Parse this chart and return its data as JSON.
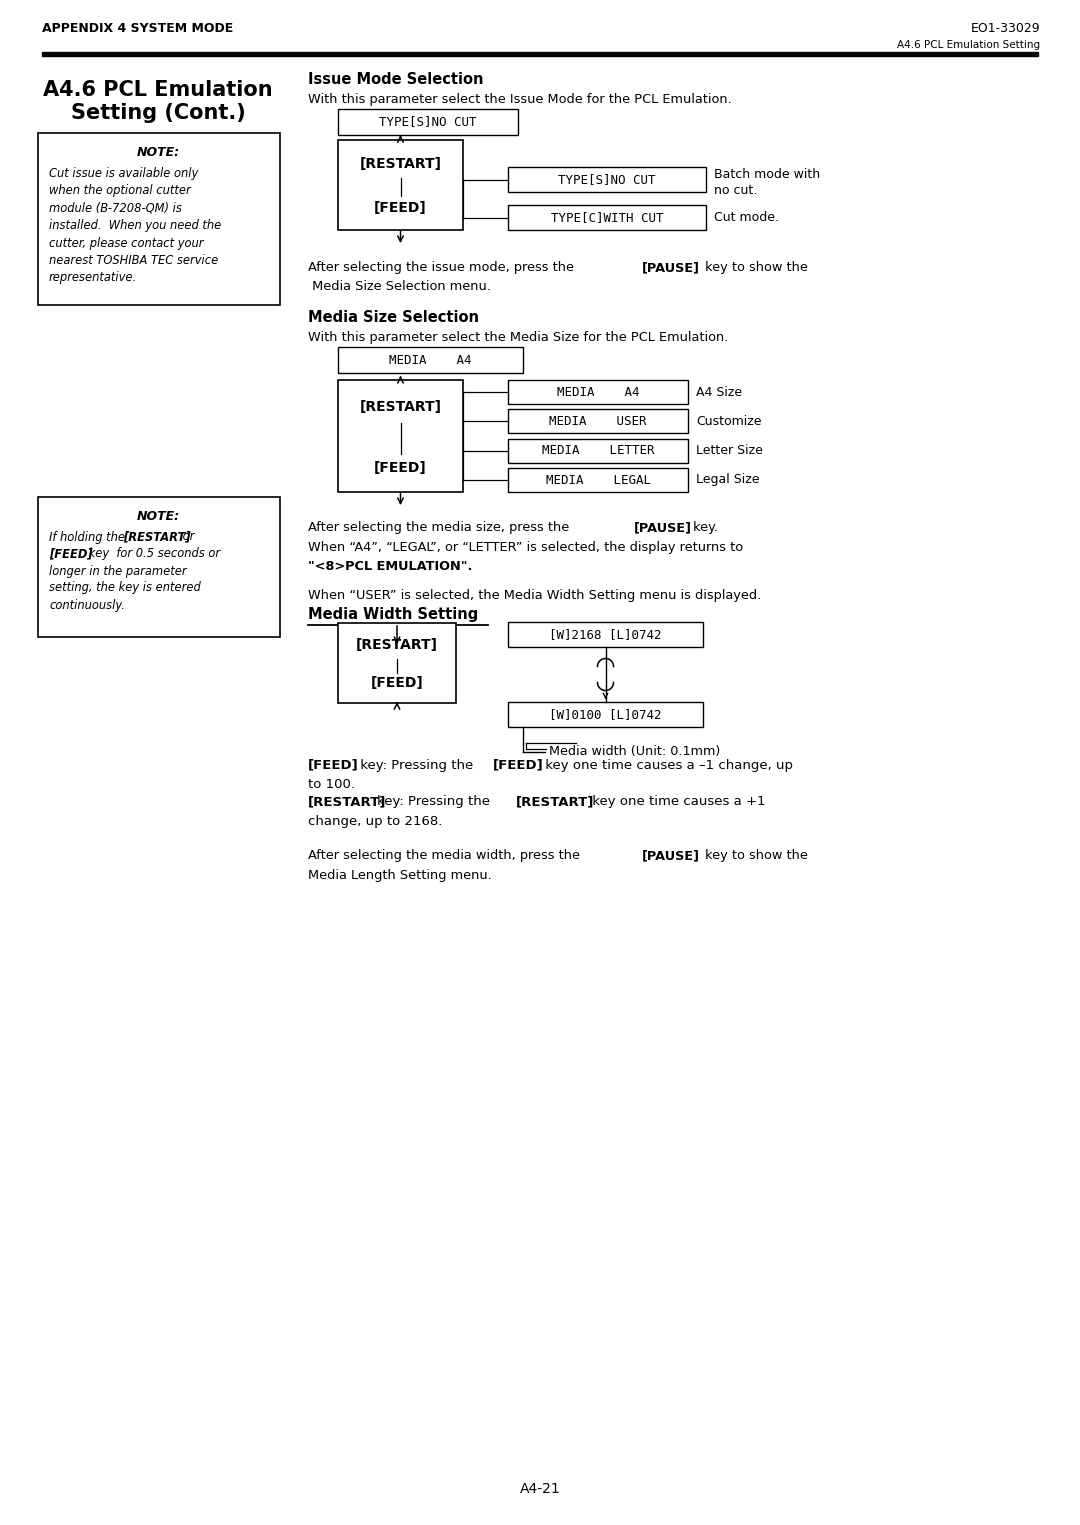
{
  "page_title_left": "APPENDIX 4 SYSTEM MODE",
  "page_title_right": "EO1-33029",
  "page_subtitle_right": "A4.6 PCL Emulation Setting",
  "section_line1": "A4.6 PCL Emulation",
  "section_line2": "Setting (Cont.)",
  "note1_title": "NOTE:",
  "note1_body": "Cut issue is available only\nwhen the optional cutter\nmodule (B-7208-QM) is\ninstalled.  When you need the\ncutter, please contact your\nnearest TOSHIBA TEC service\nrepresentative.",
  "note2_title": "NOTE:",
  "note2_line1": "If holding the ",
  "note2_bold1": "[RESTART]",
  "note2_mid": " or",
  "note2_line2a": "[FEED]",
  "note2_line2b": " key  for 0.5 seconds or",
  "note2_line3": "longer in the parameter",
  "note2_line4": "setting, the key is entered",
  "note2_line5": "continuously.",
  "issue_title": "Issue Mode Selection",
  "issue_desc": "With this parameter select the Issue Mode for the PCL Emulation.",
  "issue_display": "TYPE[S]NO CUT",
  "issue_opt1": "TYPE[S]NO CUT",
  "issue_opt1_d1": "Batch mode with",
  "issue_opt1_d2": "no cut.",
  "issue_opt2": "TYPE[C]WITH CUT",
  "issue_opt2_d": "Cut mode.",
  "after_issue_1": "After selecting the issue mode, press the ",
  "after_issue_bold": "[PAUSE]",
  "after_issue_2": " key to show the",
  "after_issue_3": " Media Size Selection menu.",
  "media_title": "Media Size Selection",
  "media_desc": "With this parameter select the Media Size for the PCL Emulation.",
  "media_display": "MEDIA    A4",
  "media_opt1": "MEDIA    A4",
  "media_opt1_d": "A4 Size",
  "media_opt2": "MEDIA    USER",
  "media_opt2_d": "Customize",
  "media_opt3": "MEDIA    LETTER",
  "media_opt3_d": "Letter Size",
  "media_opt4": "MEDIA    LEGAL",
  "media_opt4_d": "Legal Size",
  "after_media_1": "After selecting the media size, press the ",
  "after_media_bold": "[PAUSE]",
  "after_media_2": " key.",
  "after_media_3": "When “A4”, “LEGAL”, or “LETTER” is selected, the display returns to",
  "after_media_bold2": "\"<8>PCL EMULATION\".",
  "after_media_4": "When “USER” is selected, the Media Width Setting menu is displayed.",
  "width_title": "Media Width Setting",
  "width_opt1": "[W]2168 [L]0742",
  "width_opt2": "[W]0100 [L]0742",
  "width_unit": "Media width (Unit: 0.1mm)",
  "feed_b1": "[FEED]",
  "feed_t1": " key: Pressing the ",
  "feed_b2": "[FEED]",
  "feed_t2": " key one time causes a –1 change, up",
  "feed_t3": "to 100.",
  "restart_b1": "[RESTART]",
  "restart_t1": "key: Pressing the ",
  "restart_b2": "[RESTART]",
  "restart_t2": " key one time causes a +1",
  "restart_t3": "change, up to 2168.",
  "final_t1": "After selecting the media width, press the ",
  "final_bold": "[PAUSE]",
  "final_t2": " key to show the",
  "final_t3": "Media Length Setting menu.",
  "page_num": "A4-21"
}
